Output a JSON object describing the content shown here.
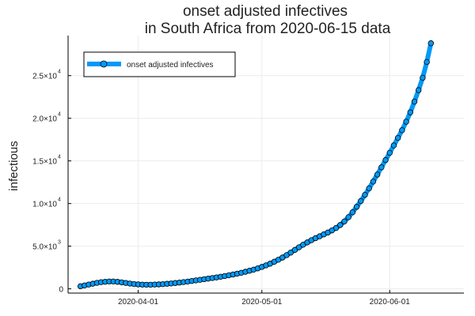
{
  "chart_data": {
    "type": "line",
    "title": "onset adjusted infectives\nin South Africa from 2020-06-15 data",
    "xlabel": "",
    "ylabel": "infectious",
    "x_start": "2020-03-18",
    "x_step_days": 1,
    "x_ticks": [
      {
        "date": "2020-04-01",
        "label": "2020-04-01"
      },
      {
        "date": "2020-05-01",
        "label": "2020-05-01"
      },
      {
        "date": "2020-06-01",
        "label": "2020-06-01"
      }
    ],
    "y_ticks": [
      {
        "value": 0,
        "mantissa": "0",
        "exp": ""
      },
      {
        "value": 5000,
        "mantissa": "5.0×10",
        "exp": "3"
      },
      {
        "value": 10000,
        "mantissa": "1.0×10",
        "exp": "4"
      },
      {
        "value": 15000,
        "mantissa": "1.5×10",
        "exp": "4"
      },
      {
        "value": 20000,
        "mantissa": "2.0×10",
        "exp": "4"
      },
      {
        "value": 25000,
        "mantissa": "2.5×10",
        "exp": "4"
      }
    ],
    "xlim": [
      "2020-03-15",
      "2020-06-19"
    ],
    "ylim": [
      -500,
      29700
    ],
    "grid": true,
    "legend_position": "top-left",
    "series": [
      {
        "name": "onset adjusted infectives",
        "color": "#009AF9",
        "values": [
          300,
          400,
          500,
          600,
          700,
          780,
          830,
          860,
          860,
          820,
          760,
          690,
          620,
          560,
          520,
          490,
          480,
          480,
          500,
          520,
          550,
          590,
          630,
          680,
          730,
          790,
          850,
          920,
          990,
          1060,
          1130,
          1200,
          1270,
          1340,
          1420,
          1500,
          1590,
          1680,
          1780,
          1880,
          2000,
          2120,
          2250,
          2400,
          2570,
          2750,
          2950,
          3170,
          3410,
          3670,
          3950,
          4250,
          4560,
          4870,
          5170,
          5440,
          5700,
          5940,
          6160,
          6380,
          6600,
          6850,
          7140,
          7480,
          7900,
          8400,
          8980,
          9620,
          10300,
          11020,
          11780,
          12580,
          13400,
          14250,
          15100,
          15950,
          16820,
          17700,
          18600,
          19600,
          20700,
          21950,
          23300,
          24750,
          26600,
          28800
        ]
      }
    ]
  }
}
